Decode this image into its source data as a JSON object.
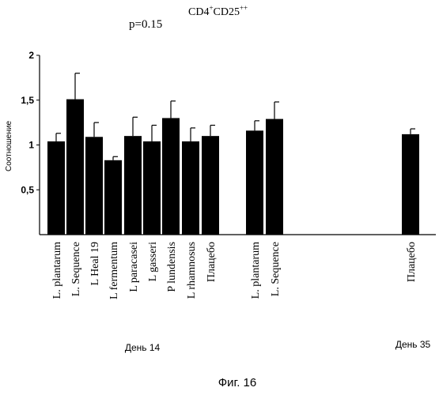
{
  "chart_data": {
    "type": "bar",
    "title_base": "CD4",
    "title_sup1": "+",
    "title_mid": "CD25",
    "title_sup2": "++",
    "pvalue": "p=0.15",
    "ylabel": "Соотношение",
    "ylim": [
      0,
      2
    ],
    "yticks": [
      {
        "value": 0.5,
        "label": "0,5"
      },
      {
        "value": 1,
        "label": "1"
      },
      {
        "value": 1.5,
        "label": "1,5"
      },
      {
        "value": 2,
        "label": "2"
      }
    ],
    "bars": [
      {
        "label": "L. plantarum",
        "value": 1.04,
        "err": 0.09
      },
      {
        "label": "L. Sequence",
        "value": 1.51,
        "err": 0.29
      },
      {
        "label": "L Heal 19",
        "value": 1.09,
        "err": 0.16
      },
      {
        "label": "L fermentum",
        "value": 0.83,
        "err": 0.04
      },
      {
        "label": "L paracasei",
        "value": 1.1,
        "err": 0.21
      },
      {
        "label": "L gasseri",
        "value": 1.04,
        "err": 0.18
      },
      {
        "label": "P lundensis",
        "value": 1.3,
        "err": 0.19
      },
      {
        "label": "L rhamnosus",
        "value": 1.04,
        "err": 0.15
      },
      {
        "label": "Плацебо",
        "value": 1.1,
        "err": 0.12
      },
      {
        "label": "L. plantarum",
        "value": 1.16,
        "err": 0.11
      },
      {
        "label": "L. Sequence",
        "value": 1.29,
        "err": 0.19
      },
      {
        "label": "Плацебо",
        "value": 1.12,
        "err": 0.06
      }
    ],
    "groups": [
      "День 14",
      "День 35"
    ],
    "grid": false,
    "legend": "none"
  },
  "caption": "Фиг. 16"
}
